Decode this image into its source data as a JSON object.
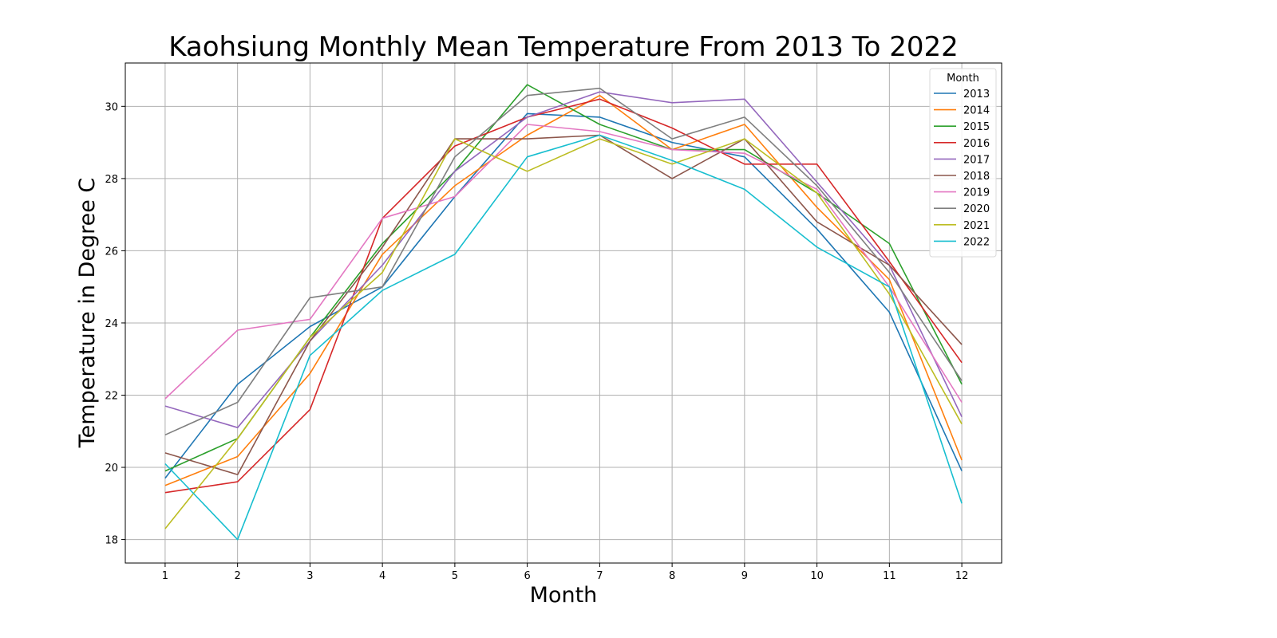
{
  "chart_data": {
    "type": "line",
    "title": "Kaohsiung Monthly Mean Temperature From 2013 To 2022",
    "xlabel": "Month",
    "ylabel": "Temperature in Degree C",
    "x": [
      1,
      2,
      3,
      4,
      5,
      6,
      7,
      8,
      9,
      10,
      11,
      12
    ],
    "xticks": [
      "1",
      "2",
      "3",
      "4",
      "5",
      "6",
      "7",
      "8",
      "9",
      "10",
      "11",
      "12"
    ],
    "yticks": [
      "18",
      "20",
      "22",
      "24",
      "26",
      "28",
      "30"
    ],
    "xlim": [
      0.45,
      12.55
    ],
    "ylim": [
      17.35,
      31.2
    ],
    "grid": true,
    "legend": {
      "title": "Month",
      "placement": "top-right"
    },
    "series": [
      {
        "name": "2013",
        "color": "#1f77b4",
        "values": [
          19.7,
          22.3,
          23.9,
          25.0,
          27.5,
          29.8,
          29.7,
          29.0,
          28.6,
          26.6,
          24.3,
          19.9
        ]
      },
      {
        "name": "2014",
        "color": "#ff7f0e",
        "values": [
          19.5,
          20.3,
          22.6,
          25.9,
          27.8,
          29.2,
          30.3,
          28.8,
          29.5,
          27.2,
          25.2,
          20.2
        ]
      },
      {
        "name": "2015",
        "color": "#2ca02c",
        "values": [
          19.9,
          20.8,
          23.6,
          26.2,
          28.2,
          30.6,
          29.5,
          28.8,
          28.8,
          27.6,
          26.2,
          22.3
        ]
      },
      {
        "name": "2016",
        "color": "#d62728",
        "values": [
          19.3,
          19.6,
          21.6,
          26.9,
          28.9,
          29.7,
          30.2,
          29.4,
          28.4,
          28.4,
          25.7,
          22.9
        ]
      },
      {
        "name": "2017",
        "color": "#9467bd",
        "values": [
          21.7,
          21.1,
          23.5,
          25.6,
          28.2,
          29.7,
          30.4,
          30.1,
          30.2,
          27.9,
          25.6,
          21.4
        ]
      },
      {
        "name": "2018",
        "color": "#8c564b",
        "values": [
          20.4,
          19.8,
          23.5,
          26.1,
          29.1,
          29.1,
          29.2,
          28.0,
          29.1,
          26.8,
          25.6,
          23.4
        ]
      },
      {
        "name": "2019",
        "color": "#e377c2",
        "values": [
          21.9,
          23.8,
          24.1,
          26.9,
          27.5,
          29.5,
          29.3,
          28.8,
          28.7,
          27.7,
          25.0,
          21.8
        ]
      },
      {
        "name": "2020",
        "color": "#7f7f7f",
        "values": [
          20.9,
          21.8,
          24.7,
          25.0,
          28.6,
          30.3,
          30.5,
          29.1,
          29.7,
          27.8,
          25.4,
          22.4
        ]
      },
      {
        "name": "2021",
        "color": "#bcbd22",
        "values": [
          18.3,
          20.8,
          23.6,
          25.4,
          29.1,
          28.2,
          29.1,
          28.4,
          29.1,
          27.6,
          24.8,
          21.2
        ]
      },
      {
        "name": "2022",
        "color": "#17becf",
        "values": [
          20.1,
          18.0,
          23.1,
          24.9,
          25.9,
          28.6,
          29.2,
          28.5,
          27.7,
          26.1,
          25.0,
          19.0
        ]
      }
    ]
  }
}
